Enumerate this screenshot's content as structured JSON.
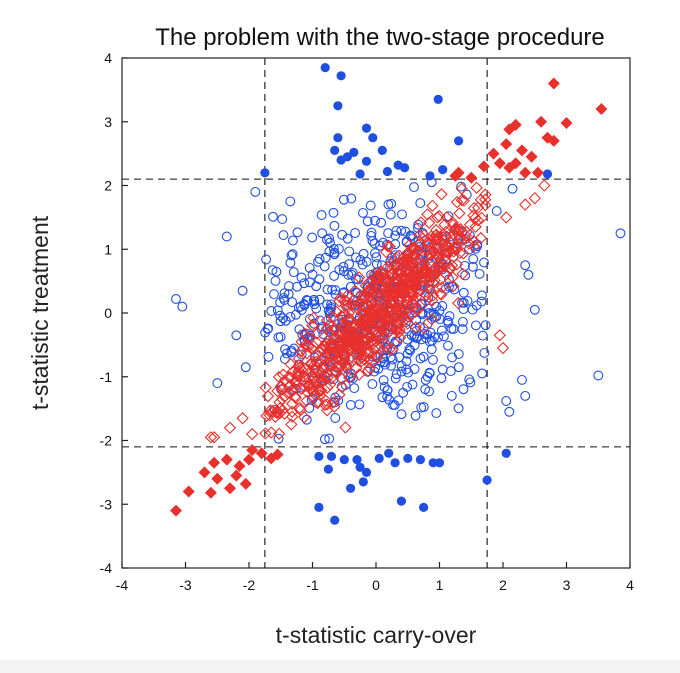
{
  "chart_data": {
    "type": "scatter",
    "title": "The problem with the two-stage procedure",
    "xlabel": "t-statistic carry-over",
    "ylabel": "t-statistic treatment",
    "xlim": [
      -4,
      4
    ],
    "ylim": [
      -4,
      4
    ],
    "xticks": [
      -4,
      -3,
      -2,
      -1,
      0,
      1,
      2,
      3,
      4
    ],
    "yticks": [
      -4,
      -3,
      -2,
      -1,
      0,
      1,
      2,
      3,
      4
    ],
    "xtick_labels": [
      "-4",
      "-3",
      "-2",
      "-1",
      "0",
      "1",
      "2",
      "3",
      "4"
    ],
    "ytick_labels": [
      "-4",
      "-3",
      "-2",
      "-1",
      "0",
      "1",
      "2",
      "3",
      "4"
    ],
    "critical_x": [
      -1.75,
      1.75
    ],
    "critical_y": [
      -2.1,
      2.1
    ],
    "colors": {
      "blue": "#1f4fe0",
      "red": "#e8302c"
    },
    "series": [
      {
        "name": "blue-significant",
        "marker": "circle-filled",
        "color": "#1f4fe0",
        "points": [
          [
            -0.8,
            3.85
          ],
          [
            -0.55,
            3.72
          ],
          [
            -0.6,
            3.25
          ],
          [
            0.98,
            3.35
          ],
          [
            -0.6,
            2.75
          ],
          [
            -0.15,
            2.9
          ],
          [
            -0.65,
            2.55
          ],
          [
            -0.55,
            2.4
          ],
          [
            -0.45,
            2.45
          ],
          [
            -0.35,
            2.52
          ],
          [
            0.1,
            2.55
          ],
          [
            -0.15,
            2.38
          ],
          [
            -0.05,
            2.75
          ],
          [
            0.35,
            2.32
          ],
          [
            0.18,
            2.22
          ],
          [
            0.45,
            2.28
          ],
          [
            -0.25,
            2.18
          ],
          [
            1.3,
            2.7
          ],
          [
            -1.75,
            2.2
          ],
          [
            2.7,
            2.18
          ],
          [
            0.85,
            2.15
          ],
          [
            1.05,
            2.25
          ],
          [
            -0.7,
            -2.25
          ],
          [
            -0.75,
            -2.45
          ],
          [
            -0.5,
            -2.3
          ],
          [
            -0.3,
            -2.3
          ],
          [
            -0.15,
            -2.5
          ],
          [
            -0.25,
            -2.42
          ],
          [
            0.05,
            -2.28
          ],
          [
            -0.2,
            -2.65
          ],
          [
            -0.4,
            -2.75
          ],
          [
            0.2,
            -2.2
          ],
          [
            0.3,
            -2.35
          ],
          [
            0.5,
            -2.28
          ],
          [
            0.7,
            -2.3
          ],
          [
            0.9,
            -2.35
          ],
          [
            -0.9,
            -3.05
          ],
          [
            -0.65,
            -3.25
          ],
          [
            0.4,
            -2.95
          ],
          [
            0.75,
            -3.05
          ],
          [
            -0.9,
            -2.25
          ],
          [
            2.05,
            -2.2
          ],
          [
            1.75,
            -2.62
          ],
          [
            1.0,
            -2.35
          ]
        ]
      },
      {
        "name": "blue-nonsignificant",
        "marker": "circle-open",
        "color": "#1f4fe0",
        "cloud": {
          "count": 560,
          "mean_x": 0,
          "mean_y": 0,
          "sd_x": 0.98,
          "sd_y": 0.85,
          "correlation": 0.0,
          "points": [
            [
              -3.15,
              0.22
            ],
            [
              -3.05,
              0.1
            ],
            [
              3.85,
              1.25
            ],
            [
              3.5,
              -0.98
            ],
            [
              2.4,
              0.6
            ],
            [
              2.35,
              0.75
            ],
            [
              -2.35,
              1.2
            ],
            [
              -2.1,
              0.35
            ],
            [
              -2.2,
              -0.35
            ],
            [
              -2.05,
              -0.85
            ],
            [
              2.3,
              -1.05
            ],
            [
              2.35,
              -1.3
            ],
            [
              2.05,
              -1.38
            ],
            [
              2.1,
              -1.55
            ],
            [
              1.9,
              1.6
            ],
            [
              2.15,
              1.95
            ],
            [
              -1.9,
              1.9
            ],
            [
              -1.35,
              1.75
            ],
            [
              2.5,
              0.05
            ],
            [
              -2.5,
              -1.1
            ]
          ]
        }
      },
      {
        "name": "red-significant",
        "marker": "diamond-filled",
        "color": "#e8302c",
        "points": [
          [
            3.55,
            3.2
          ],
          [
            2.8,
            3.6
          ],
          [
            3.0,
            2.98
          ],
          [
            2.6,
            3.0
          ],
          [
            2.7,
            2.75
          ],
          [
            2.8,
            2.7
          ],
          [
            2.2,
            2.95
          ],
          [
            2.1,
            2.88
          ],
          [
            2.05,
            2.65
          ],
          [
            2.3,
            2.55
          ],
          [
            2.45,
            2.45
          ],
          [
            2.2,
            2.35
          ],
          [
            2.1,
            2.28
          ],
          [
            2.35,
            2.2
          ],
          [
            2.55,
            2.2
          ],
          [
            1.7,
            2.3
          ],
          [
            1.95,
            2.35
          ],
          [
            1.85,
            2.5
          ],
          [
            1.3,
            2.2
          ],
          [
            1.25,
            2.15
          ],
          [
            1.5,
            2.12
          ],
          [
            -3.15,
            -3.1
          ],
          [
            -2.95,
            -2.8
          ],
          [
            -2.6,
            -2.82
          ],
          [
            -2.5,
            -2.6
          ],
          [
            -2.7,
            -2.5
          ],
          [
            -2.55,
            -2.35
          ],
          [
            -2.3,
            -2.75
          ],
          [
            -2.2,
            -2.55
          ],
          [
            -2.15,
            -2.4
          ],
          [
            -2.35,
            -2.3
          ],
          [
            -2.0,
            -2.3
          ],
          [
            -1.95,
            -2.15
          ],
          [
            -1.8,
            -2.2
          ],
          [
            -1.55,
            -2.22
          ],
          [
            -1.65,
            -2.28
          ],
          [
            -2.05,
            -2.68
          ]
        ]
      },
      {
        "name": "red-nonsignificant",
        "marker": "diamond-open",
        "color": "#e8302c",
        "cloud": {
          "count": 760,
          "mean_x": 0,
          "mean_y": 0,
          "sd_x": 0.95,
          "sd_y": 0.95,
          "correlation": 0.93,
          "points": [
            [
              2.65,
              2.0
            ],
            [
              2.5,
              1.8
            ],
            [
              2.35,
              1.7
            ],
            [
              2.05,
              1.5
            ],
            [
              -2.6,
              -1.95
            ],
            [
              -2.3,
              -1.8
            ],
            [
              -2.1,
              -1.65
            ],
            [
              -1.95,
              -1.9
            ],
            [
              -2.55,
              -1.95
            ],
            [
              2.0,
              -0.55
            ],
            [
              1.95,
              -0.35
            ]
          ]
        }
      }
    ]
  }
}
